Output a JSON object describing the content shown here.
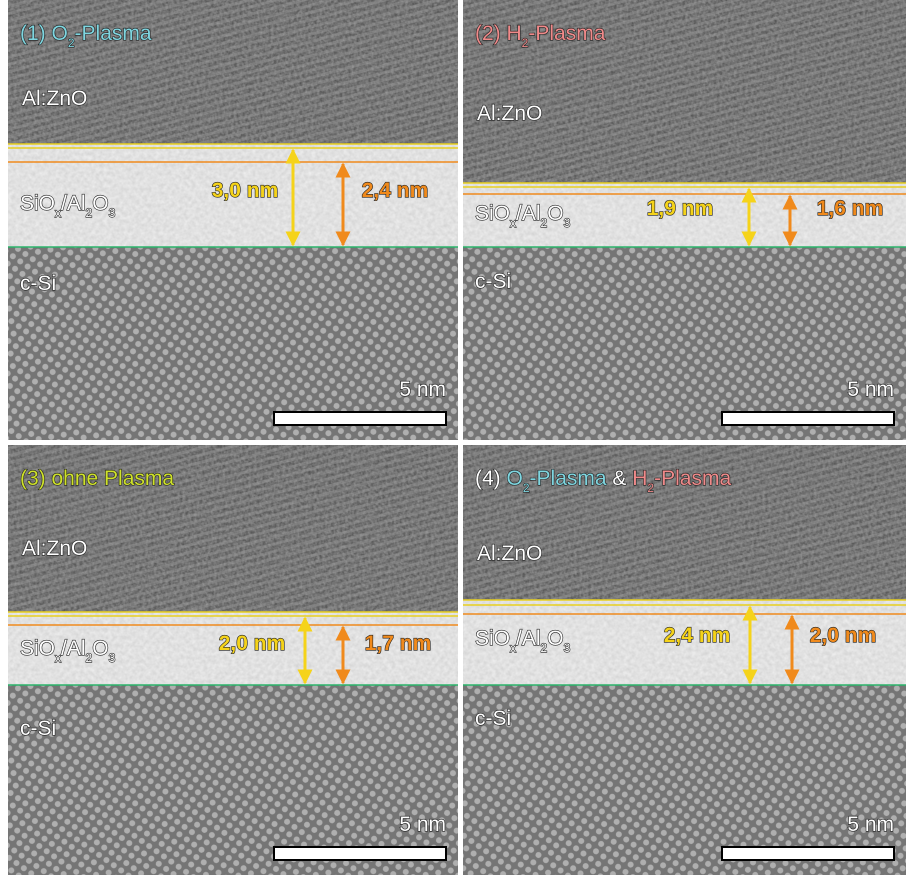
{
  "panels": [
    {
      "title": [
        {
          "text": "(1) ",
          "color": "#7fd6e0"
        },
        {
          "text": "O",
          "color": "#7fd6e0"
        },
        {
          "text": "2",
          "color": "#7fd6e0",
          "sub": true
        },
        {
          "text": "-Plasma",
          "color": "#7fd6e0"
        }
      ],
      "top_layer": "Al:ZnO",
      "middle_layer": [
        {
          "text": "SiO"
        },
        {
          "text": "x",
          "sub": true
        },
        {
          "text": "/Al"
        },
        {
          "text": "2",
          "sub": true
        },
        {
          "text": "O"
        },
        {
          "text": "3",
          "sub": true
        }
      ],
      "bottom_layer": "c-Si",
      "total_thickness": "3,0 nm",
      "oxide_thickness": "2,4 nm",
      "scale_bar": "5 nm"
    },
    {
      "title": [
        {
          "text": "(2) ",
          "color": "#f08a8a"
        },
        {
          "text": "H",
          "color": "#f08a8a"
        },
        {
          "text": "2",
          "color": "#f08a8a",
          "sub": true
        },
        {
          "text": "-Plasma",
          "color": "#f08a8a"
        }
      ],
      "top_layer": "Al:ZnO",
      "middle_layer": [
        {
          "text": "SiO"
        },
        {
          "text": "x",
          "sub": true
        },
        {
          "text": "/Al"
        },
        {
          "text": "2",
          "sub": true
        },
        {
          "text": "O"
        },
        {
          "text": "3",
          "sub": true
        }
      ],
      "bottom_layer": "c-Si",
      "total_thickness": "1,9 nm",
      "oxide_thickness": "1,6 nm",
      "scale_bar": "5 nm"
    },
    {
      "title": [
        {
          "text": "(3) ohne Plasma",
          "color": "#cfe22a"
        }
      ],
      "top_layer": "Al:ZnO",
      "middle_layer": [
        {
          "text": "SiO"
        },
        {
          "text": "x",
          "sub": true
        },
        {
          "text": "/Al"
        },
        {
          "text": "2",
          "sub": true
        },
        {
          "text": "O"
        },
        {
          "text": "3",
          "sub": true
        }
      ],
      "bottom_layer": "c-Si",
      "total_thickness": "2,0 nm",
      "oxide_thickness": "1,7 nm",
      "scale_bar": "5 nm"
    },
    {
      "title": [
        {
          "text": "(4) ",
          "color": "#ffffff"
        },
        {
          "text": "O",
          "color": "#7fd6e0"
        },
        {
          "text": "2",
          "color": "#7fd6e0",
          "sub": true
        },
        {
          "text": "-Plasma",
          "color": "#7fd6e0"
        },
        {
          "text": " & ",
          "color": "#ffffff"
        },
        {
          "text": "H",
          "color": "#f08a8a"
        },
        {
          "text": "2",
          "color": "#f08a8a",
          "sub": true
        },
        {
          "text": "-Plasma",
          "color": "#f08a8a"
        }
      ],
      "top_layer": "Al:ZnO",
      "middle_layer": [
        {
          "text": "SiO"
        },
        {
          "text": "x",
          "sub": true
        },
        {
          "text": "/Al"
        },
        {
          "text": "2",
          "sub": true
        },
        {
          "text": "O"
        },
        {
          "text": "3",
          "sub": true
        }
      ],
      "bottom_layer": "c-Si",
      "total_thickness": "2,4 nm",
      "oxide_thickness": "2,0 nm",
      "scale_bar": "5 nm"
    }
  ]
}
